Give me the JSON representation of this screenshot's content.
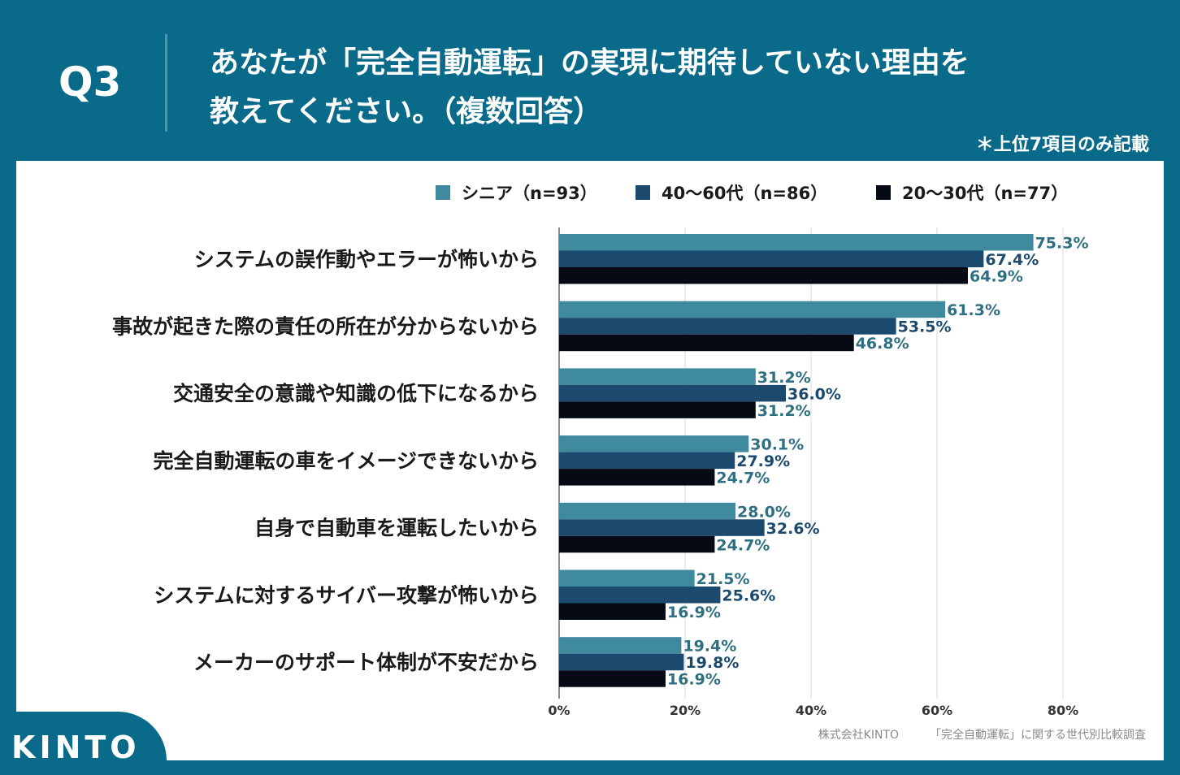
{
  "header": {
    "q_number": "Q3",
    "question_line1": "あなたが「完全自動運転」の実現に期待していない理由を",
    "question_line2": "教えてください。（複数回答）",
    "note": "＊上位7項目のみ記載"
  },
  "footer": {
    "source_company": "株式会社KINTO",
    "source_survey": "「完全自動運転」に関する世代別比較調査",
    "logo": "KINTO"
  },
  "colors": {
    "background": "#0a6a8a",
    "senior": "#3f8a9e",
    "middle": "#1b4a6e",
    "young": "#050a14"
  },
  "chart_data": {
    "type": "bar",
    "orientation": "horizontal",
    "categories": [
      "システムの誤作動やエラーが怖いから",
      "事故が起きた際の責任の所在が分からないから",
      "交通安全の意識や知識の低下になるから",
      "完全自動運転の車をイメージできないから",
      "自身で自動車を運転したいから",
      "システムに対するサイバー攻撃が怖いから",
      "メーカーのサポート体制が不安だから"
    ],
    "series": [
      {
        "name": "シニア（n=93）",
        "values": [
          75.3,
          61.3,
          31.2,
          30.1,
          28.0,
          21.5,
          19.4
        ],
        "labels": [
          "75.3%",
          "61.3%",
          "31.2%",
          "30.1%",
          "28.0%",
          "21.5%",
          "19.4%"
        ]
      },
      {
        "name": "40〜60代（n=86）",
        "values": [
          67.4,
          53.5,
          36.0,
          27.9,
          32.6,
          25.6,
          19.8
        ],
        "labels": [
          "67.4%",
          "53.5%",
          "36.0%",
          "27.9%",
          "32.6%",
          "25.6%",
          "19.8%"
        ]
      },
      {
        "name": "20〜30代（n=77）",
        "values": [
          64.9,
          46.8,
          31.2,
          24.7,
          24.7,
          16.9,
          16.9
        ],
        "labels": [
          "64.9%",
          "46.8%",
          "31.2%",
          "24.7%",
          "24.7%",
          "16.9%",
          "16.9%"
        ]
      }
    ],
    "x_ticks": [
      "0%",
      "20%",
      "40%",
      "60%",
      "80%"
    ],
    "x_tick_values": [
      0,
      20,
      40,
      60,
      80
    ],
    "xlim": [
      0,
      80
    ],
    "grid": true,
    "legend_position": "top-right"
  }
}
